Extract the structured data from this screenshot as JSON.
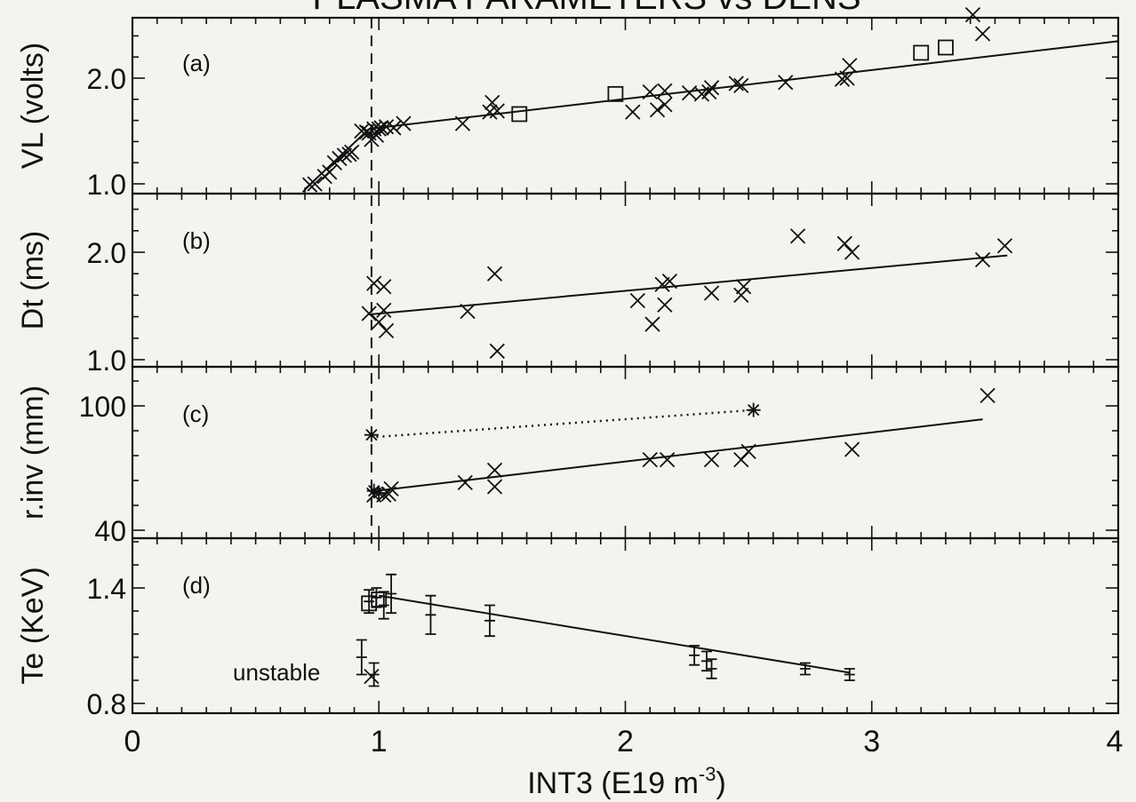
{
  "chart_data": [
    {
      "type": "scatter",
      "panel_label": "(a)",
      "ylabel": "VL (volts)",
      "yticks": [
        "1.0",
        "2.0"
      ],
      "ylim": [
        0.95,
        2.55
      ],
      "xlim": [
        0,
        4
      ],
      "series": [
        {
          "marker": "cross",
          "points": [
            [
              0.72,
              0.99
            ],
            [
              0.74,
              1.0
            ],
            [
              0.78,
              1.07
            ],
            [
              0.8,
              1.11
            ],
            [
              0.82,
              1.2
            ],
            [
              0.84,
              1.24
            ],
            [
              0.86,
              1.27
            ],
            [
              0.88,
              1.28
            ],
            [
              0.89,
              1.3
            ],
            [
              0.93,
              1.5
            ],
            [
              0.95,
              1.49
            ],
            [
              0.96,
              1.48
            ],
            [
              0.97,
              1.42
            ],
            [
              0.98,
              1.52
            ],
            [
              0.99,
              1.46
            ],
            [
              1.0,
              1.52
            ],
            [
              1.01,
              1.53
            ],
            [
              1.03,
              1.54
            ],
            [
              1.06,
              1.53
            ],
            [
              1.1,
              1.57
            ],
            [
              1.34,
              1.57
            ],
            [
              1.45,
              1.68
            ],
            [
              1.46,
              1.77
            ],
            [
              1.48,
              1.69
            ],
            [
              2.03,
              1.68
            ],
            [
              2.1,
              1.87
            ],
            [
              2.13,
              1.7
            ],
            [
              2.16,
              1.75
            ],
            [
              2.16,
              1.88
            ],
            [
              2.26,
              1.86
            ],
            [
              2.31,
              1.85
            ],
            [
              2.34,
              1.87
            ],
            [
              2.35,
              1.91
            ],
            [
              2.45,
              1.95
            ],
            [
              2.47,
              1.93
            ],
            [
              2.65,
              1.96
            ],
            [
              2.88,
              1.99
            ],
            [
              2.9,
              2.0
            ],
            [
              2.91,
              2.12
            ],
            [
              3.41,
              2.6
            ],
            [
              3.45,
              2.42
            ]
          ]
        },
        {
          "marker": "square",
          "points": [
            [
              1.57,
              1.66
            ],
            [
              1.96,
              1.85
            ],
            [
              3.2,
              2.24
            ],
            [
              3.3,
              2.29
            ]
          ]
        }
      ],
      "fit_lines": [
        {
          "style": "solid",
          "points": [
            [
              0.7,
              0.95
            ],
            [
              0.96,
              1.52
            ]
          ]
        },
        {
          "style": "solid",
          "points": [
            [
              0.96,
              1.52
            ],
            [
              4.0,
              2.35
            ]
          ]
        }
      ]
    },
    {
      "type": "scatter",
      "panel_label": "(b)",
      "ylabel": "Dt (ms)",
      "yticks": [
        "1.0",
        "2.0"
      ],
      "ylim": [
        0.95,
        2.6
      ],
      "xlim": [
        0,
        4
      ],
      "series": [
        {
          "marker": "cross",
          "points": [
            [
              0.96,
              1.43
            ],
            [
              0.98,
              1.71
            ],
            [
              1.0,
              1.35
            ],
            [
              1.02,
              1.68
            ],
            [
              1.02,
              1.46
            ],
            [
              1.03,
              1.27
            ],
            [
              1.36,
              1.45
            ],
            [
              1.48,
              1.08
            ],
            [
              1.47,
              1.8
            ],
            [
              2.05,
              1.55
            ],
            [
              2.11,
              1.33
            ],
            [
              2.15,
              1.7
            ],
            [
              2.16,
              1.51
            ],
            [
              2.18,
              1.73
            ],
            [
              2.35,
              1.62
            ],
            [
              2.47,
              1.6
            ],
            [
              2.48,
              1.68
            ],
            [
              2.7,
              2.15
            ],
            [
              2.89,
              2.08
            ],
            [
              2.92,
              2.0
            ],
            [
              3.45,
              1.93
            ],
            [
              3.54,
              2.06
            ]
          ]
        }
      ],
      "fit_lines": [
        {
          "style": "solid",
          "points": [
            [
              0.96,
              1.42
            ],
            [
              3.55,
              1.97
            ]
          ]
        }
      ]
    },
    {
      "type": "scatter",
      "panel_label": "(c)",
      "ylabel": "r.inv (mm)",
      "yticks": [
        "40",
        "100"
      ],
      "ylim": [
        37,
        118
      ],
      "xlim": [
        0,
        4
      ],
      "series": [
        {
          "marker": "cross",
          "points": [
            [
              0.98,
              57
            ],
            [
              1.02,
              57
            ],
            [
              1.04,
              57.5
            ],
            [
              1.05,
              60
            ],
            [
              1.35,
              63
            ],
            [
              1.47,
              61
            ],
            [
              1.47,
              69
            ],
            [
              2.1,
              74
            ],
            [
              2.17,
              74
            ],
            [
              2.35,
              74
            ],
            [
              2.47,
              74
            ],
            [
              2.5,
              78
            ],
            [
              2.92,
              79
            ],
            [
              3.47,
              105
            ]
          ]
        },
        {
          "marker": "star",
          "points": [
            [
              0.98,
              59
            ],
            [
              1.0,
              58
            ],
            [
              0.97,
              86
            ],
            [
              2.52,
              98
            ]
          ]
        }
      ],
      "fit_lines": [
        {
          "style": "solid",
          "points": [
            [
              0.99,
              59
            ],
            [
              3.45,
              93.5
            ]
          ]
        },
        {
          "style": "dotted",
          "points": [
            [
              0.99,
              85
            ],
            [
              2.52,
              98
            ]
          ]
        }
      ]
    },
    {
      "type": "scatter",
      "panel_label": "(d)",
      "ylabel": "Te (KeV)",
      "yticks": [
        "0.8",
        "1.4"
      ],
      "ylim": [
        0.78,
        1.6
      ],
      "xlim": [
        0,
        4
      ],
      "annotation": "unstable",
      "series": [
        {
          "marker": "errorbar",
          "points": [
            [
              0.93,
              1.04,
              0.09
            ],
            [
              0.96,
              1.33,
              0.06
            ],
            [
              0.98,
              0.95,
              0.06
            ],
            [
              0.99,
              1.35,
              0.05
            ],
            [
              1.02,
              1.31,
              0.07
            ],
            [
              1.05,
              1.37,
              0.1
            ],
            [
              1.21,
              1.26,
              0.1
            ],
            [
              1.45,
              1.23,
              0.08
            ],
            [
              2.28,
              1.05,
              0.05
            ],
            [
              2.33,
              1.02,
              0.05
            ],
            [
              2.35,
              0.98,
              0.05
            ],
            [
              2.73,
              0.98,
              0.03
            ],
            [
              2.91,
              0.95,
              0.03
            ]
          ]
        },
        {
          "marker": "cross",
          "points": [
            [
              0.97,
              0.94
            ]
          ]
        },
        {
          "marker": "square",
          "points": [
            [
              0.96,
              1.32
            ],
            [
              1.0,
              1.34
            ]
          ]
        }
      ],
      "fit_lines": [
        {
          "style": "solid",
          "points": [
            [
              1.0,
              1.36
            ],
            [
              2.91,
              0.96
            ]
          ]
        }
      ]
    }
  ],
  "x_axis": {
    "ticks": [
      "0",
      "1",
      "2",
      "3",
      "4"
    ],
    "label_main": "INT3 (E19 m",
    "label_exp": "-3",
    "label_close": ")"
  },
  "vertical_marker_x": 0.97,
  "top_title_partial": "PLASMA PARAMETERS vs DENS"
}
